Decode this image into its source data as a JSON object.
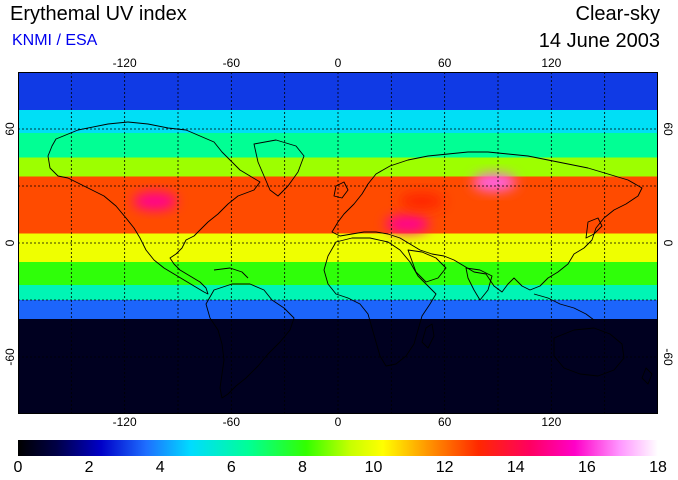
{
  "header": {
    "title": "Erythemal UV index",
    "credit": "KNMI / ESA",
    "condition": "Clear-sky",
    "date": "14 June 2003"
  },
  "map": {
    "projection": "equirectangular",
    "longitude_range": [
      -180,
      180
    ],
    "latitude_range": [
      -90,
      90
    ],
    "lon_ticks": [
      {
        "value": -120,
        "label": "-120"
      },
      {
        "value": -60,
        "label": "-60"
      },
      {
        "value": 0,
        "label": "0"
      },
      {
        "value": 60,
        "label": "60"
      },
      {
        "value": 120,
        "label": "120"
      }
    ],
    "lat_ticks": [
      {
        "value": 60,
        "label": "60"
      },
      {
        "value": 0,
        "label": "0"
      },
      {
        "value": -60,
        "label": "-60"
      }
    ],
    "gridlines": {
      "lon_step": 30,
      "lat_step": 30,
      "style": "dotted"
    },
    "uv_zones": [
      {
        "lat_from": 90,
        "lat_to": 70,
        "uv": 3
      },
      {
        "lat_from": 70,
        "lat_to": 58,
        "uv": 5
      },
      {
        "lat_from": 58,
        "lat_to": 45,
        "uv": 6.5
      },
      {
        "lat_from": 45,
        "lat_to": 35,
        "uv": 9
      },
      {
        "lat_from": 35,
        "lat_to": 5,
        "uv": 12.5
      },
      {
        "lat_from": 5,
        "lat_to": -10,
        "uv": 10
      },
      {
        "lat_from": -10,
        "lat_to": -22,
        "uv": 8
      },
      {
        "lat_from": -22,
        "lat_to": -30,
        "uv": 6
      },
      {
        "lat_from": -30,
        "lat_to": -40,
        "uv": 3.5
      },
      {
        "lat_from": -40,
        "lat_to": -90,
        "uv": 0.5
      }
    ],
    "hotspots": [
      {
        "region": "Tibetan Plateau",
        "lon": 88,
        "lat": 32,
        "uv": 16.5
      },
      {
        "region": "Ethiopian Highlands",
        "lon": 39,
        "lat": 10,
        "uv": 15
      },
      {
        "region": "Mexican Plateau",
        "lon": -103,
        "lat": 22,
        "uv": 15
      },
      {
        "region": "Arabian Peninsula",
        "lon": 47,
        "lat": 22,
        "uv": 13
      }
    ]
  },
  "colorbar": {
    "min": 0,
    "max": 18,
    "ticks": [
      "0",
      "2",
      "4",
      "6",
      "8",
      "10",
      "12",
      "14",
      "16",
      "18"
    ]
  }
}
